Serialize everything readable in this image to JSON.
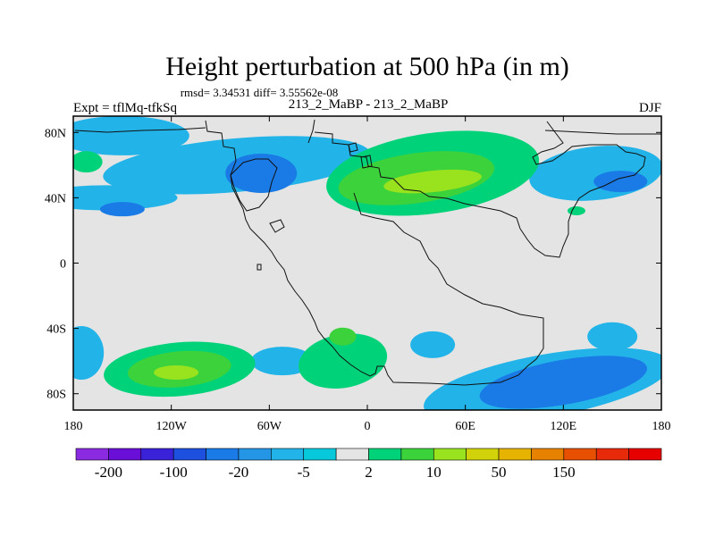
{
  "chart_data": {
    "type": "heatmap",
    "title": "Height perturbation at 500 hPa (in m)",
    "stats_label": "rmsd= 3.34531 diff= 3.55562e-08",
    "left_label": "Expt = tflMq-tfkSq",
    "center_label": "213_2_MaBP - 213_2_MaBP",
    "right_label": "DJF",
    "xlim": [
      -180,
      180
    ],
    "ylim": [
      -90,
      90
    ],
    "x_ticks": [
      {
        "value": -180,
        "label": "180"
      },
      {
        "value": -120,
        "label": "120W"
      },
      {
        "value": -60,
        "label": "60W"
      },
      {
        "value": 0,
        "label": "0"
      },
      {
        "value": 60,
        "label": "60E"
      },
      {
        "value": 120,
        "label": "120E"
      },
      {
        "value": 180,
        "label": "180"
      }
    ],
    "y_ticks": [
      {
        "value": 80,
        "label": "80N"
      },
      {
        "value": 40,
        "label": "40N"
      },
      {
        "value": 0,
        "label": "0"
      },
      {
        "value": -40,
        "label": "40S"
      },
      {
        "value": -80,
        "label": "80S"
      }
    ],
    "colorbar": {
      "colors": [
        "#8a2be2",
        "#6a0fd8",
        "#3a22d8",
        "#1e50e0",
        "#1a7ae6",
        "#2596e6",
        "#22b4e8",
        "#08c8dc",
        "#e4e4e4",
        "#00d27a",
        "#3cd23c",
        "#98e21e",
        "#d2d20a",
        "#e6b400",
        "#e68200",
        "#e65000",
        "#e62a0a",
        "#e60000"
      ],
      "labels": [
        {
          "index": 1,
          "text": "-200"
        },
        {
          "index": 3,
          "text": "-100"
        },
        {
          "index": 5,
          "text": "-20"
        },
        {
          "index": 7,
          "text": "-5"
        },
        {
          "index": 9,
          "text": "2"
        },
        {
          "index": 11,
          "text": "10"
        },
        {
          "index": 13,
          "text": "50"
        },
        {
          "index": 15,
          "text": "150"
        }
      ]
    },
    "field_features": [
      {
        "lon": -150,
        "lat": 78,
        "value": -5,
        "level": "cyan"
      },
      {
        "lon": -160,
        "lat": 40,
        "value": -5,
        "level": "cyan"
      },
      {
        "lon": -80,
        "lat": 60,
        "value": -5,
        "level": "cyan"
      },
      {
        "lon": -65,
        "lat": 55,
        "value": -20,
        "level": "blue"
      },
      {
        "lon": -150,
        "lat": 33,
        "value": -20,
        "level": "blue"
      },
      {
        "lon": -172,
        "lat": 62,
        "value": 5,
        "level": "green"
      },
      {
        "lon": 40,
        "lat": 55,
        "value": 5,
        "level": "green"
      },
      {
        "lon": 30,
        "lat": 52,
        "value": 10,
        "level": "bright-green"
      },
      {
        "lon": 40,
        "lat": 50,
        "value": 20,
        "level": "yellow-green"
      },
      {
        "lon": 140,
        "lat": 55,
        "value": -5,
        "level": "cyan"
      },
      {
        "lon": 155,
        "lat": 50,
        "value": -20,
        "level": "blue"
      },
      {
        "lon": 128,
        "lat": 32,
        "value": 5,
        "level": "green"
      },
      {
        "lon": -175,
        "lat": -55,
        "value": -5,
        "level": "cyan"
      },
      {
        "lon": -115,
        "lat": -65,
        "value": 5,
        "level": "green"
      },
      {
        "lon": -115,
        "lat": -65,
        "value": 10,
        "level": "bright-green"
      },
      {
        "lon": -117,
        "lat": -67,
        "value": 20,
        "level": "yellow-green"
      },
      {
        "lon": -52,
        "lat": -60,
        "value": -5,
        "level": "cyan"
      },
      {
        "lon": -15,
        "lat": -60,
        "value": 5,
        "level": "green"
      },
      {
        "lon": -15,
        "lat": -45,
        "value": 10,
        "level": "bright-green"
      },
      {
        "lon": 40,
        "lat": -50,
        "value": -5,
        "level": "cyan"
      },
      {
        "lon": 110,
        "lat": -75,
        "value": -5,
        "level": "cyan"
      },
      {
        "lon": 120,
        "lat": -73,
        "value": -20,
        "level": "blue"
      },
      {
        "lon": 150,
        "lat": -45,
        "value": -5,
        "level": "cyan"
      }
    ]
  }
}
